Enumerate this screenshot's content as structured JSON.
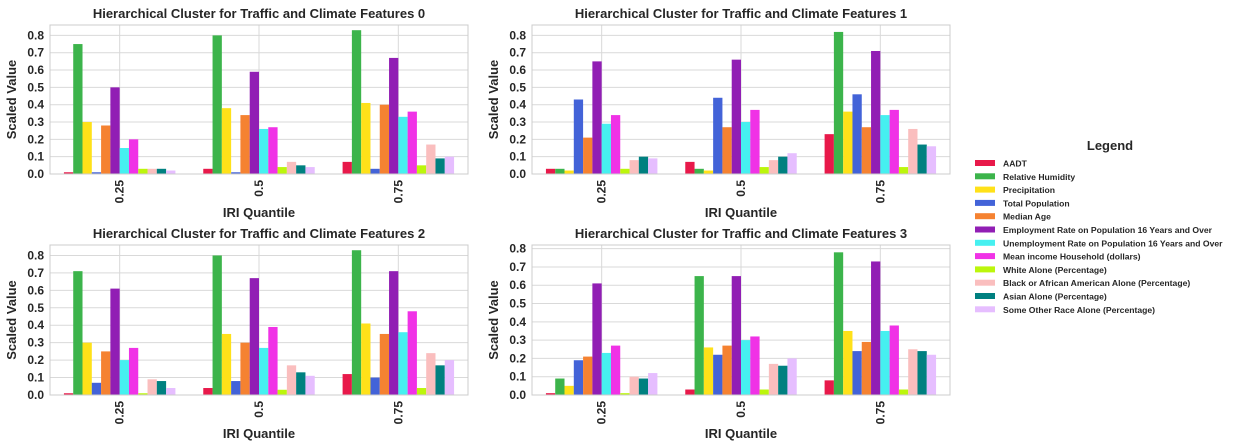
{
  "chart_data": [
    {
      "type": "bar",
      "title": "Hierarchical Cluster for Traffic and Climate Features 0",
      "xlabel": "IRI Quantile",
      "ylabel": "Scaled Value",
      "categories": [
        "0.25",
        "0.5",
        "0.75"
      ],
      "ylim": [
        0,
        0.86
      ],
      "yticks": [
        "0.0",
        "0.1",
        "0.2",
        "0.3",
        "0.4",
        "0.5",
        "0.6",
        "0.7",
        "0.8"
      ],
      "grid": true,
      "series": [
        {
          "name": "AADT",
          "values": [
            0.01,
            0.03,
            0.07
          ]
        },
        {
          "name": "Relative Humidity",
          "values": [
            0.75,
            0.8,
            0.83
          ]
        },
        {
          "name": "Precipitation",
          "values": [
            0.3,
            0.38,
            0.41
          ]
        },
        {
          "name": "Total Population",
          "values": [
            0.01,
            0.01,
            0.03
          ]
        },
        {
          "name": "Median Age",
          "values": [
            0.28,
            0.34,
            0.4
          ]
        },
        {
          "name": "Employment Rate on Population 16 Years and Over",
          "values": [
            0.5,
            0.59,
            0.67
          ]
        },
        {
          "name": "Unemployment Rate on Population 16 Years and Over",
          "values": [
            0.15,
            0.26,
            0.33
          ]
        },
        {
          "name": "Mean income Household (dollars)",
          "values": [
            0.2,
            0.27,
            0.36
          ]
        },
        {
          "name": "White Alone (Percentage)",
          "values": [
            0.03,
            0.04,
            0.05
          ]
        },
        {
          "name": "Black or African American Alone (Percentage)",
          "values": [
            0.03,
            0.07,
            0.17
          ]
        },
        {
          "name": "Asian Alone (Percentage)",
          "values": [
            0.03,
            0.05,
            0.09
          ]
        },
        {
          "name": "Some Other Race Alone (Percentage)",
          "values": [
            0.02,
            0.04,
            0.1
          ]
        }
      ]
    },
    {
      "type": "bar",
      "title": "Hierarchical Cluster for Traffic and Climate Features 1",
      "xlabel": "IRI Quantile",
      "ylabel": "Scaled Value",
      "categories": [
        "0.25",
        "0.5",
        "0.75"
      ],
      "ylim": [
        0,
        0.86
      ],
      "yticks": [
        "0.0",
        "0.1",
        "0.2",
        "0.3",
        "0.4",
        "0.5",
        "0.6",
        "0.7",
        "0.8"
      ],
      "grid": true,
      "series": [
        {
          "name": "AADT",
          "values": [
            0.03,
            0.07,
            0.23
          ]
        },
        {
          "name": "Relative Humidity",
          "values": [
            0.03,
            0.03,
            0.82
          ]
        },
        {
          "name": "Precipitation",
          "values": [
            0.02,
            0.02,
            0.36
          ]
        },
        {
          "name": "Total Population",
          "values": [
            0.43,
            0.44,
            0.46
          ]
        },
        {
          "name": "Median Age",
          "values": [
            0.21,
            0.27,
            0.27
          ]
        },
        {
          "name": "Employment Rate on Population 16 Years and Over",
          "values": [
            0.65,
            0.66,
            0.71
          ]
        },
        {
          "name": "Unemployment Rate on Population 16 Years and Over",
          "values": [
            0.29,
            0.3,
            0.34
          ]
        },
        {
          "name": "Mean income Household (dollars)",
          "values": [
            0.34,
            0.37,
            0.37
          ]
        },
        {
          "name": "White Alone (Percentage)",
          "values": [
            0.03,
            0.04,
            0.04
          ]
        },
        {
          "name": "Black or African American Alone (Percentage)",
          "values": [
            0.08,
            0.08,
            0.26
          ]
        },
        {
          "name": "Asian Alone (Percentage)",
          "values": [
            0.1,
            0.1,
            0.17
          ]
        },
        {
          "name": "Some Other Race Alone (Percentage)",
          "values": [
            0.09,
            0.12,
            0.16
          ]
        }
      ]
    },
    {
      "type": "bar",
      "title": "Hierarchical Cluster for Traffic and Climate Features 2",
      "xlabel": "IRI Quantile",
      "ylabel": "Scaled Value",
      "categories": [
        "0.25",
        "0.5",
        "0.75"
      ],
      "ylim": [
        0,
        0.86
      ],
      "yticks": [
        "0.0",
        "0.1",
        "0.2",
        "0.3",
        "0.4",
        "0.5",
        "0.6",
        "0.7",
        "0.8"
      ],
      "grid": true,
      "series": [
        {
          "name": "AADT",
          "values": [
            0.01,
            0.04,
            0.12
          ]
        },
        {
          "name": "Relative Humidity",
          "values": [
            0.71,
            0.8,
            0.83
          ]
        },
        {
          "name": "Precipitation",
          "values": [
            0.3,
            0.35,
            0.41
          ]
        },
        {
          "name": "Total Population",
          "values": [
            0.07,
            0.08,
            0.1
          ]
        },
        {
          "name": "Median Age",
          "values": [
            0.25,
            0.3,
            0.35
          ]
        },
        {
          "name": "Employment Rate on Population 16 Years and Over",
          "values": [
            0.61,
            0.67,
            0.71
          ]
        },
        {
          "name": "Unemployment Rate on Population 16 Years and Over",
          "values": [
            0.2,
            0.27,
            0.36
          ]
        },
        {
          "name": "Mean income Household (dollars)",
          "values": [
            0.27,
            0.39,
            0.48
          ]
        },
        {
          "name": "White Alone (Percentage)",
          "values": [
            0.01,
            0.03,
            0.04
          ]
        },
        {
          "name": "Black or African American Alone (Percentage)",
          "values": [
            0.09,
            0.17,
            0.24
          ]
        },
        {
          "name": "Asian Alone (Percentage)",
          "values": [
            0.08,
            0.13,
            0.17
          ]
        },
        {
          "name": "Some Other Race Alone (Percentage)",
          "values": [
            0.04,
            0.11,
            0.2
          ]
        }
      ]
    },
    {
      "type": "bar",
      "title": "Hierarchical Cluster for Traffic and Climate Features 3",
      "xlabel": "IRI Quantile",
      "ylabel": "Scaled Value",
      "categories": [
        "0.25",
        "0.5",
        "0.75"
      ],
      "ylim": [
        0,
        0.82
      ],
      "yticks": [
        "0.0",
        "0.1",
        "0.2",
        "0.3",
        "0.4",
        "0.5",
        "0.6",
        "0.7",
        "0.8"
      ],
      "grid": true,
      "series": [
        {
          "name": "AADT",
          "values": [
            0.01,
            0.03,
            0.08
          ]
        },
        {
          "name": "Relative Humidity",
          "values": [
            0.09,
            0.65,
            0.78
          ]
        },
        {
          "name": "Precipitation",
          "values": [
            0.05,
            0.26,
            0.35
          ]
        },
        {
          "name": "Total Population",
          "values": [
            0.19,
            0.22,
            0.24
          ]
        },
        {
          "name": "Median Age",
          "values": [
            0.21,
            0.27,
            0.29
          ]
        },
        {
          "name": "Employment Rate on Population 16 Years and Over",
          "values": [
            0.61,
            0.65,
            0.73
          ]
        },
        {
          "name": "Unemployment Rate on Population 16 Years and Over",
          "values": [
            0.23,
            0.3,
            0.35
          ]
        },
        {
          "name": "Mean income Household (dollars)",
          "values": [
            0.27,
            0.32,
            0.38
          ]
        },
        {
          "name": "White Alone (Percentage)",
          "values": [
            0.01,
            0.03,
            0.03
          ]
        },
        {
          "name": "Black or African American Alone (Percentage)",
          "values": [
            0.1,
            0.17,
            0.25
          ]
        },
        {
          "name": "Asian Alone (Percentage)",
          "values": [
            0.09,
            0.16,
            0.24
          ]
        },
        {
          "name": "Some Other Race Alone (Percentage)",
          "values": [
            0.12,
            0.2,
            0.22
          ]
        }
      ]
    }
  ],
  "legend": {
    "title": "Legend",
    "placement": "right"
  },
  "colors": {
    "AADT": "#e8194a",
    "Relative Humidity": "#3cb44b",
    "Precipitation": "#ffe119",
    "Total Population": "#4363d8",
    "Median Age": "#f58231",
    "Employment Rate on Population 16 Years and Over": "#911eb4",
    "Unemployment Rate on Population 16 Years and Over": "#46f0f0",
    "Mean income Household (dollars)": "#f032e6",
    "White Alone (Percentage)": "#bcf60c",
    "Black or African American Alone (Percentage)": "#fabebe",
    "Asian Alone (Percentage)": "#008080",
    "Some Other Race Alone (Percentage)": "#e6beff",
    "grid": "#d9d9d9",
    "axes_edge": "#cccccc",
    "text": "#262626"
  }
}
